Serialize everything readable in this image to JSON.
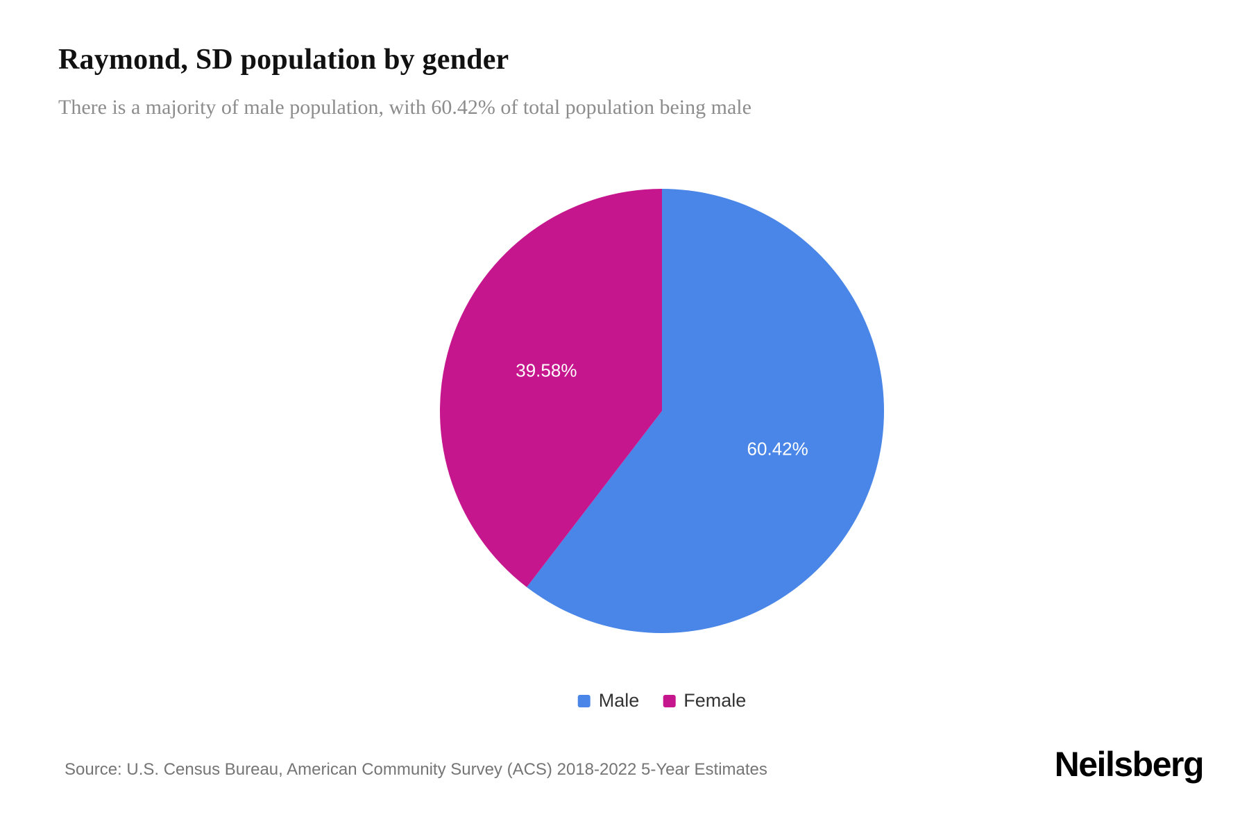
{
  "chart_data": {
    "type": "pie",
    "title": "Raymond, SD population by gender",
    "subtitle": "There is a majority of male population, with 60.42% of total population being male",
    "start_angle_deg": 0,
    "direction": "clockwise",
    "legend_position": "bottom",
    "series": [
      {
        "name": "Male",
        "value": 60.42,
        "label": "60.42%",
        "color": "#4a86e8"
      },
      {
        "name": "Female",
        "value": 39.58,
        "label": "39.58%",
        "color": "#c6168d"
      }
    ]
  },
  "footer": {
    "source": "Source: U.S. Census Bureau, American Community Survey (ACS) 2018-2022 5-Year Estimates",
    "brand": "Neilsberg"
  }
}
